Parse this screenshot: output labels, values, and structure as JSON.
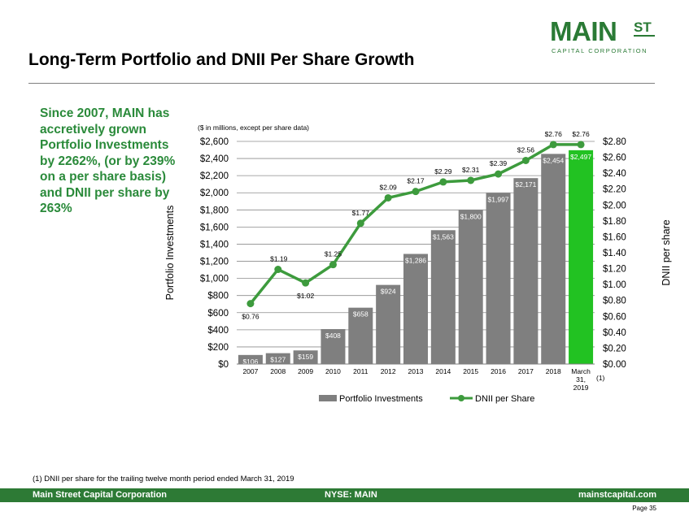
{
  "logo": {
    "main": "MAIN",
    "st": "ST",
    "sub": "CAPITAL CORPORATION"
  },
  "title": "Long-Term Portfolio and DNII Per Share Growth",
  "side_text": "Since 2007, MAIN has accretively grown Portfolio Investments by 2262%, (or by 239% on a per share basis) and DNII per share by 263%",
  "footnote": "(1)    DNII per share for the trailing twelve month period ended March 31, 2019",
  "footer": {
    "left": "Main Street Capital Corporation",
    "middle": "NYSE: MAIN",
    "right": "mainstcapital.com"
  },
  "page_number": "Page  35",
  "colors": {
    "bar": "#7f7f7f",
    "bar_highlight": "#22c222",
    "line": "#3d9b3d",
    "brand": "#2a7a35"
  },
  "chart_data": {
    "type": "bar+line",
    "subtitle": "($ in millions, except per share data)",
    "ylabel_left": "Portfolio Investments",
    "ylabel_right": "DNII per share",
    "categories": [
      "2007",
      "2008",
      "2009",
      "2010",
      "2011",
      "2012",
      "2013",
      "2014",
      "2015",
      "2016",
      "2017",
      "2018",
      "March 31, 2019"
    ],
    "category_note": "(1)",
    "series": [
      {
        "name": "Portfolio Investments",
        "axis": "left",
        "type": "bar",
        "values": [
          106,
          127,
          159,
          408,
          658,
          924,
          1286,
          1563,
          1800,
          1997,
          2171,
          2454,
          2497
        ],
        "labels": [
          "$106",
          "$127",
          "$159",
          "$408",
          "$658",
          "$924",
          "$1,286",
          "$1,563",
          "$1,800",
          "$1,997",
          "$2,171",
          "$2,454",
          "$2,497"
        ]
      },
      {
        "name": "DNII per Share",
        "axis": "right",
        "type": "line",
        "values": [
          0.76,
          1.19,
          1.02,
          1.25,
          1.77,
          2.09,
          2.17,
          2.29,
          2.31,
          2.39,
          2.56,
          2.76,
          2.76
        ],
        "labels": [
          "$0.76",
          "$1.19",
          "$1.02",
          "$1.25",
          "$1.77",
          "$2.09",
          "$2.17",
          "$2.29",
          "$2.31",
          "$2.39",
          "$2.56",
          "$2.76",
          "$2.76"
        ]
      }
    ],
    "ylim_left": [
      0,
      2600
    ],
    "ylim_right": [
      0,
      2.8
    ],
    "yticks_left": [
      "$0",
      "$200",
      "$400",
      "$600",
      "$800",
      "$1,000",
      "$1,200",
      "$1,400",
      "$1,600",
      "$1,800",
      "$2,000",
      "$2,200",
      "$2,400",
      "$2,600"
    ],
    "yticks_right": [
      "$0.00",
      "$0.20",
      "$0.40",
      "$0.60",
      "$0.80",
      "$1.00",
      "$1.20",
      "$1.40",
      "$1.60",
      "$1.80",
      "$2.00",
      "$2.20",
      "$2.40",
      "$2.60",
      "$2.80"
    ],
    "grid": "horizontal",
    "legend": [
      "Portfolio Investments",
      "DNII per Share"
    ],
    "legend_position": "bottom"
  }
}
